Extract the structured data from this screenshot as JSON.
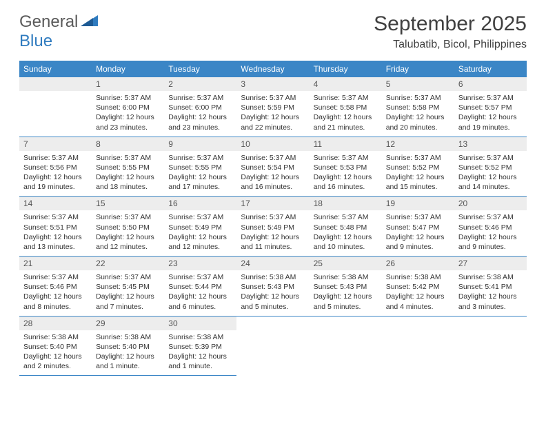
{
  "logo": {
    "word1": "General",
    "word2": "Blue"
  },
  "title": "September 2025",
  "location": "Talubatib, Bicol, Philippines",
  "headers": [
    "Sunday",
    "Monday",
    "Tuesday",
    "Wednesday",
    "Thursday",
    "Friday",
    "Saturday"
  ],
  "colors": {
    "header_bg": "#3b86c6",
    "header_text": "#ffffff",
    "daynum_bg": "#ededed",
    "text": "#333333",
    "logo_gray": "#5a5a5a",
    "logo_blue": "#2f7bbf"
  },
  "weeks": [
    [
      null,
      {
        "n": "1",
        "sr": "Sunrise: 5:37 AM",
        "ss": "Sunset: 6:00 PM",
        "dl": "Daylight: 12 hours and 23 minutes."
      },
      {
        "n": "2",
        "sr": "Sunrise: 5:37 AM",
        "ss": "Sunset: 6:00 PM",
        "dl": "Daylight: 12 hours and 23 minutes."
      },
      {
        "n": "3",
        "sr": "Sunrise: 5:37 AM",
        "ss": "Sunset: 5:59 PM",
        "dl": "Daylight: 12 hours and 22 minutes."
      },
      {
        "n": "4",
        "sr": "Sunrise: 5:37 AM",
        "ss": "Sunset: 5:58 PM",
        "dl": "Daylight: 12 hours and 21 minutes."
      },
      {
        "n": "5",
        "sr": "Sunrise: 5:37 AM",
        "ss": "Sunset: 5:58 PM",
        "dl": "Daylight: 12 hours and 20 minutes."
      },
      {
        "n": "6",
        "sr": "Sunrise: 5:37 AM",
        "ss": "Sunset: 5:57 PM",
        "dl": "Daylight: 12 hours and 19 minutes."
      }
    ],
    [
      {
        "n": "7",
        "sr": "Sunrise: 5:37 AM",
        "ss": "Sunset: 5:56 PM",
        "dl": "Daylight: 12 hours and 19 minutes."
      },
      {
        "n": "8",
        "sr": "Sunrise: 5:37 AM",
        "ss": "Sunset: 5:55 PM",
        "dl": "Daylight: 12 hours and 18 minutes."
      },
      {
        "n": "9",
        "sr": "Sunrise: 5:37 AM",
        "ss": "Sunset: 5:55 PM",
        "dl": "Daylight: 12 hours and 17 minutes."
      },
      {
        "n": "10",
        "sr": "Sunrise: 5:37 AM",
        "ss": "Sunset: 5:54 PM",
        "dl": "Daylight: 12 hours and 16 minutes."
      },
      {
        "n": "11",
        "sr": "Sunrise: 5:37 AM",
        "ss": "Sunset: 5:53 PM",
        "dl": "Daylight: 12 hours and 16 minutes."
      },
      {
        "n": "12",
        "sr": "Sunrise: 5:37 AM",
        "ss": "Sunset: 5:52 PM",
        "dl": "Daylight: 12 hours and 15 minutes."
      },
      {
        "n": "13",
        "sr": "Sunrise: 5:37 AM",
        "ss": "Sunset: 5:52 PM",
        "dl": "Daylight: 12 hours and 14 minutes."
      }
    ],
    [
      {
        "n": "14",
        "sr": "Sunrise: 5:37 AM",
        "ss": "Sunset: 5:51 PM",
        "dl": "Daylight: 12 hours and 13 minutes."
      },
      {
        "n": "15",
        "sr": "Sunrise: 5:37 AM",
        "ss": "Sunset: 5:50 PM",
        "dl": "Daylight: 12 hours and 12 minutes."
      },
      {
        "n": "16",
        "sr": "Sunrise: 5:37 AM",
        "ss": "Sunset: 5:49 PM",
        "dl": "Daylight: 12 hours and 12 minutes."
      },
      {
        "n": "17",
        "sr": "Sunrise: 5:37 AM",
        "ss": "Sunset: 5:49 PM",
        "dl": "Daylight: 12 hours and 11 minutes."
      },
      {
        "n": "18",
        "sr": "Sunrise: 5:37 AM",
        "ss": "Sunset: 5:48 PM",
        "dl": "Daylight: 12 hours and 10 minutes."
      },
      {
        "n": "19",
        "sr": "Sunrise: 5:37 AM",
        "ss": "Sunset: 5:47 PM",
        "dl": "Daylight: 12 hours and 9 minutes."
      },
      {
        "n": "20",
        "sr": "Sunrise: 5:37 AM",
        "ss": "Sunset: 5:46 PM",
        "dl": "Daylight: 12 hours and 9 minutes."
      }
    ],
    [
      {
        "n": "21",
        "sr": "Sunrise: 5:37 AM",
        "ss": "Sunset: 5:46 PM",
        "dl": "Daylight: 12 hours and 8 minutes."
      },
      {
        "n": "22",
        "sr": "Sunrise: 5:37 AM",
        "ss": "Sunset: 5:45 PM",
        "dl": "Daylight: 12 hours and 7 minutes."
      },
      {
        "n": "23",
        "sr": "Sunrise: 5:37 AM",
        "ss": "Sunset: 5:44 PM",
        "dl": "Daylight: 12 hours and 6 minutes."
      },
      {
        "n": "24",
        "sr": "Sunrise: 5:38 AM",
        "ss": "Sunset: 5:43 PM",
        "dl": "Daylight: 12 hours and 5 minutes."
      },
      {
        "n": "25",
        "sr": "Sunrise: 5:38 AM",
        "ss": "Sunset: 5:43 PM",
        "dl": "Daylight: 12 hours and 5 minutes."
      },
      {
        "n": "26",
        "sr": "Sunrise: 5:38 AM",
        "ss": "Sunset: 5:42 PM",
        "dl": "Daylight: 12 hours and 4 minutes."
      },
      {
        "n": "27",
        "sr": "Sunrise: 5:38 AM",
        "ss": "Sunset: 5:41 PM",
        "dl": "Daylight: 12 hours and 3 minutes."
      }
    ],
    [
      {
        "n": "28",
        "sr": "Sunrise: 5:38 AM",
        "ss": "Sunset: 5:40 PM",
        "dl": "Daylight: 12 hours and 2 minutes."
      },
      {
        "n": "29",
        "sr": "Sunrise: 5:38 AM",
        "ss": "Sunset: 5:40 PM",
        "dl": "Daylight: 12 hours and 1 minute."
      },
      {
        "n": "30",
        "sr": "Sunrise: 5:38 AM",
        "ss": "Sunset: 5:39 PM",
        "dl": "Daylight: 12 hours and 1 minute."
      },
      null,
      null,
      null,
      null
    ]
  ]
}
